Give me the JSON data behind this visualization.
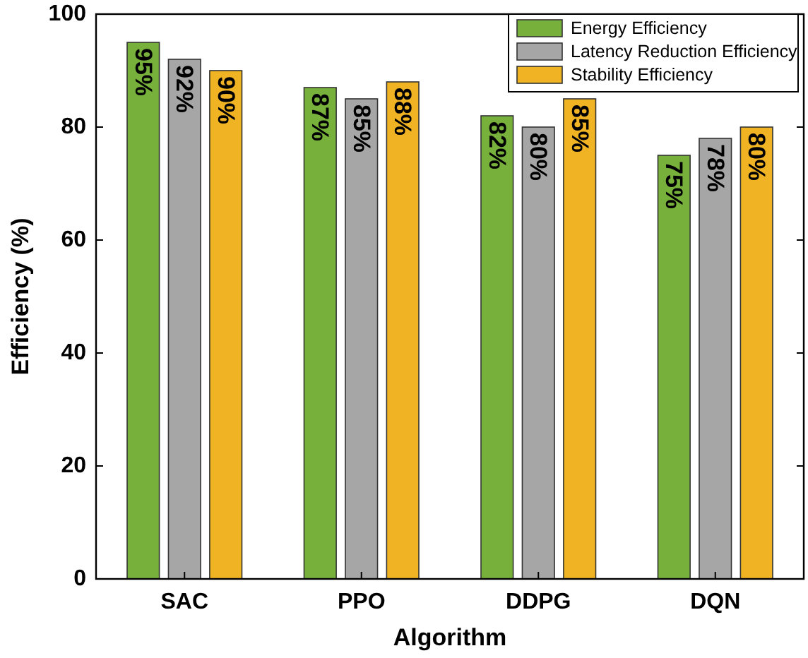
{
  "chart_data": {
    "type": "bar",
    "xlabel": "Algorithm",
    "ylabel": "Efficiency (%)",
    "categories": [
      "SAC",
      "PPO",
      "DDPG",
      "DQN"
    ],
    "series": [
      {
        "name": "Energy Efficiency",
        "color": "#77b03a",
        "values": [
          95,
          87,
          82,
          75
        ],
        "value_labels": [
          "95%",
          "87%",
          "82%",
          "75%"
        ]
      },
      {
        "name": "Latency Reduction Efficiency",
        "color": "#a6a6a6",
        "values": [
          92,
          85,
          80,
          78
        ],
        "value_labels": [
          "92%",
          "85%",
          "80%",
          "78%"
        ]
      },
      {
        "name": "Stability Efficiency",
        "color": "#f0b323",
        "values": [
          90,
          88,
          85,
          80
        ],
        "value_labels": [
          "90%",
          "88%",
          "85%",
          "80%"
        ]
      }
    ],
    "ylim": [
      0,
      100
    ],
    "yticks": [
      0,
      20,
      40,
      60,
      80,
      100
    ],
    "grid": false,
    "legend": "top right"
  }
}
